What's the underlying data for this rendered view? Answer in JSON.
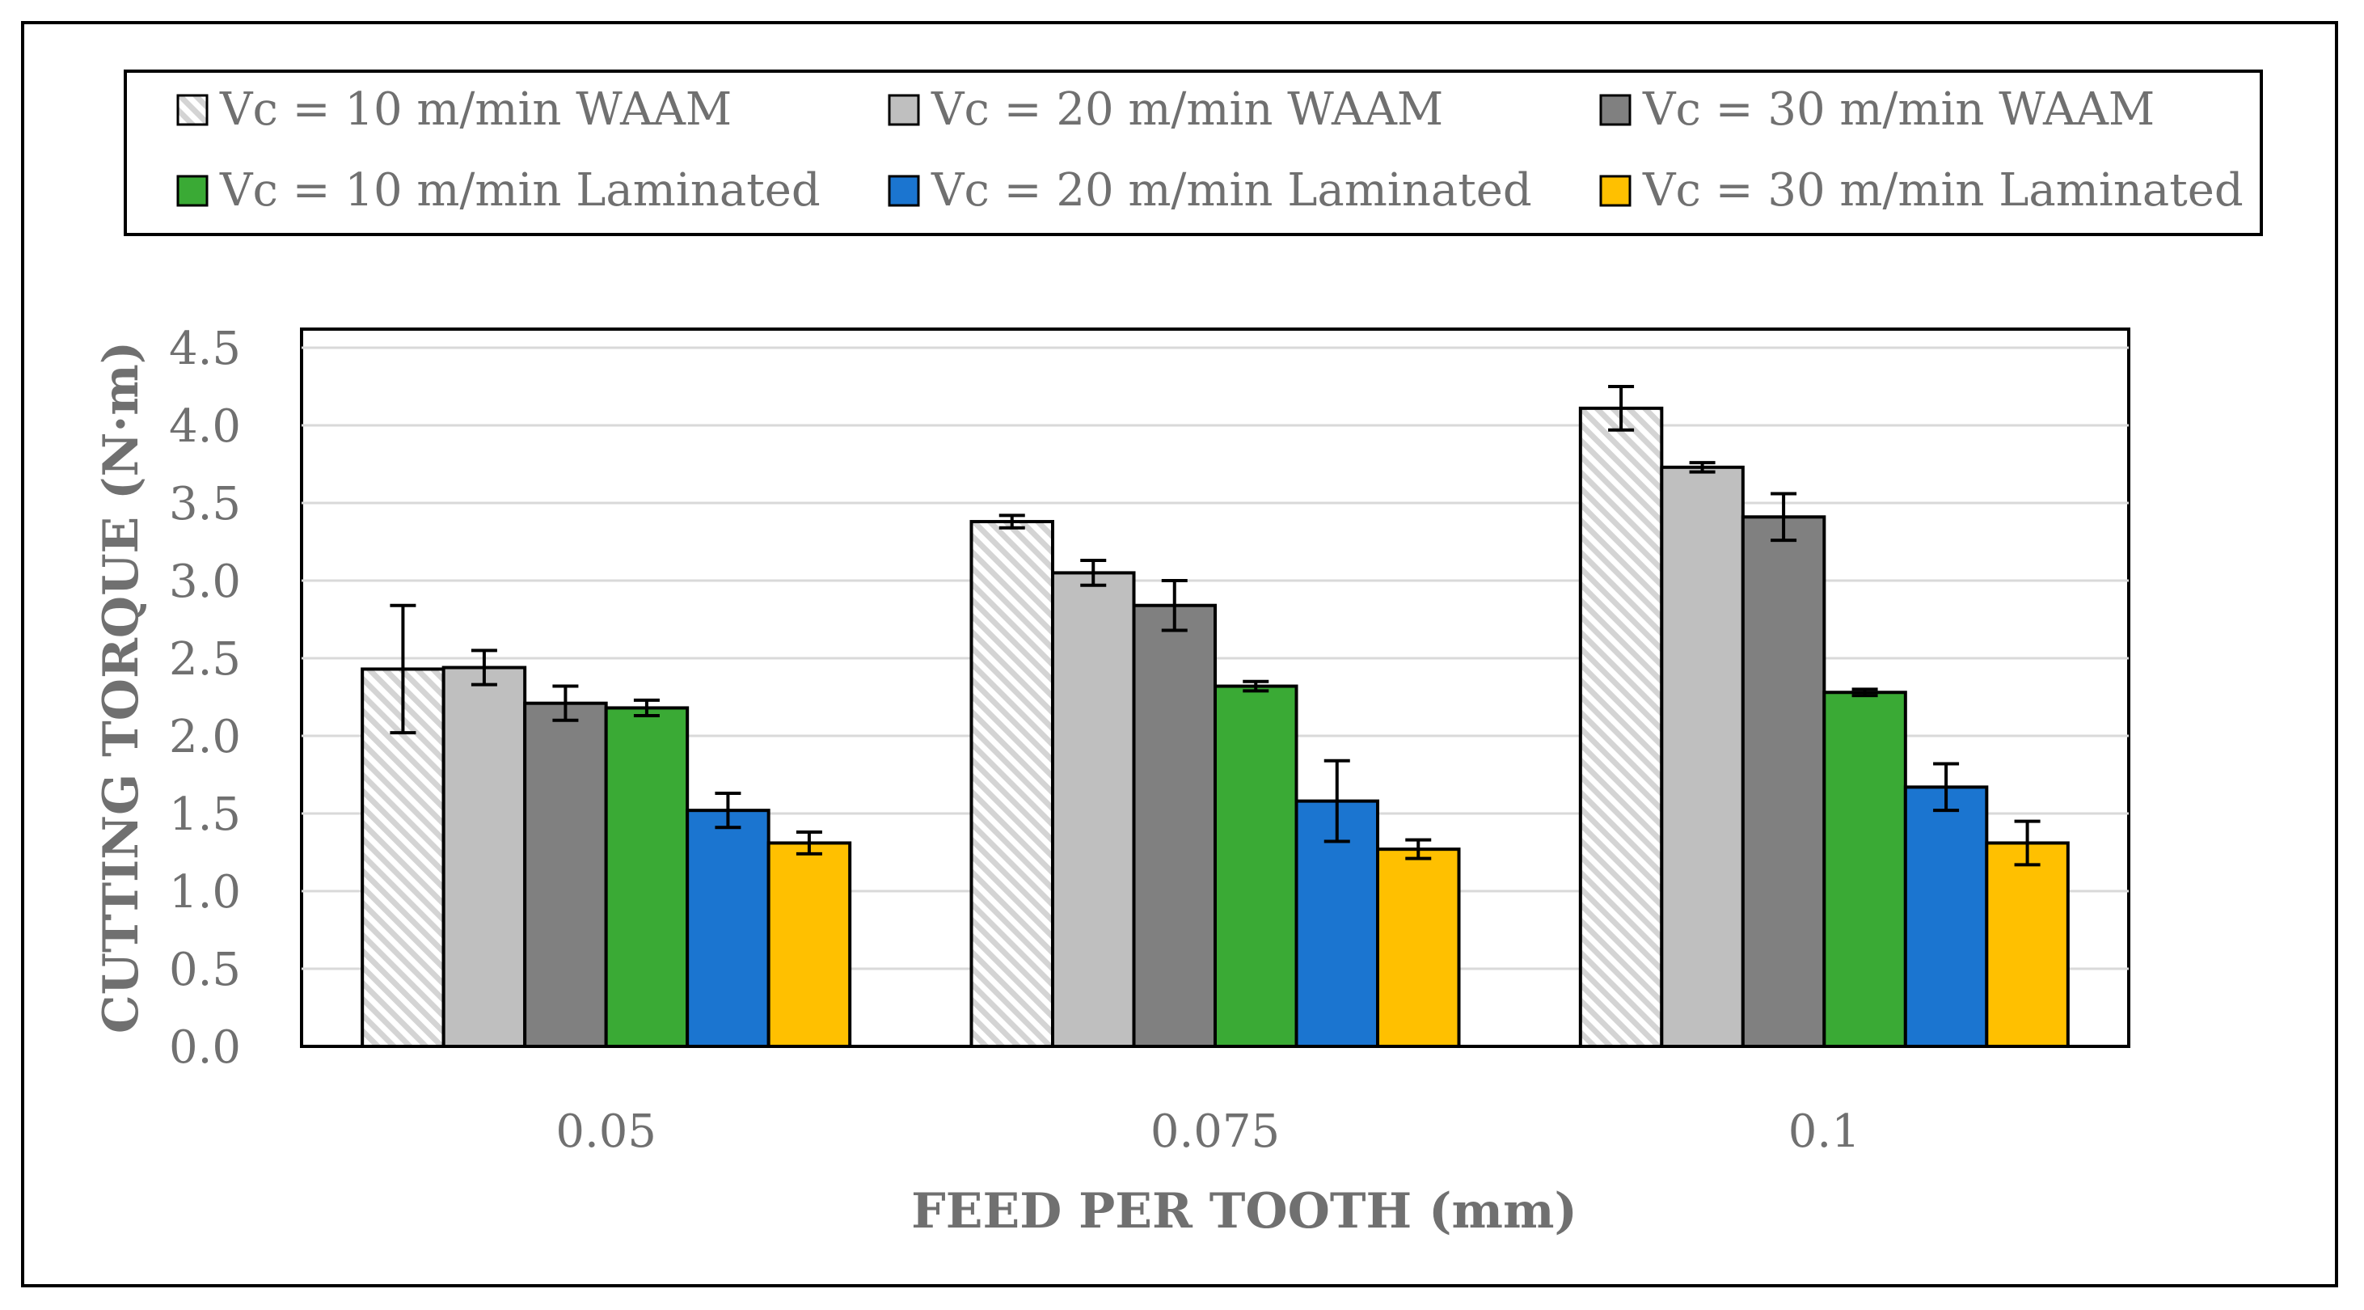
{
  "chart_data": {
    "type": "bar",
    "xlabel": "FEED PER TOOTH (mm)",
    "ylabel": "CUTTING TORQUE (N·m)",
    "ylim": [
      0,
      4.5
    ],
    "yticks": [
      "0.0",
      "0.5",
      "1.0",
      "1.5",
      "2.0",
      "2.5",
      "3.0",
      "3.5",
      "4.0",
      "4.5"
    ],
    "categories": [
      "0.05",
      "0.075",
      "0.1"
    ],
    "grid": true,
    "legend_position": "top",
    "series": [
      {
        "name": "Vc = 10 m/min WAAM",
        "color": "#e6e6e6",
        "pattern": "hatch",
        "values": [
          2.43,
          3.38,
          4.11
        ],
        "errors": [
          0.41,
          0.04,
          0.14
        ]
      },
      {
        "name": "Vc = 20 m/min WAAM",
        "color": "#bfbfbf",
        "values": [
          2.44,
          3.05,
          3.73
        ],
        "errors": [
          0.11,
          0.08,
          0.03
        ]
      },
      {
        "name": "Vc = 30 m/min WAAM",
        "color": "#808080",
        "values": [
          2.21,
          2.84,
          3.41
        ],
        "errors": [
          0.11,
          0.16,
          0.15
        ]
      },
      {
        "name": "Vc = 10 m/min Laminated",
        "color": "#3aaa35",
        "values": [
          2.18,
          2.32,
          2.28
        ],
        "errors": [
          0.05,
          0.03,
          0.02
        ]
      },
      {
        "name": "Vc = 20 m/min Laminated",
        "color": "#1b75d0",
        "values": [
          1.52,
          1.58,
          1.67
        ],
        "errors": [
          0.11,
          0.26,
          0.15
        ]
      },
      {
        "name": "Vc = 30 m/min Laminated",
        "color": "#ffc000",
        "values": [
          1.31,
          1.27,
          1.31
        ],
        "errors": [
          0.07,
          0.06,
          0.14
        ]
      }
    ]
  }
}
